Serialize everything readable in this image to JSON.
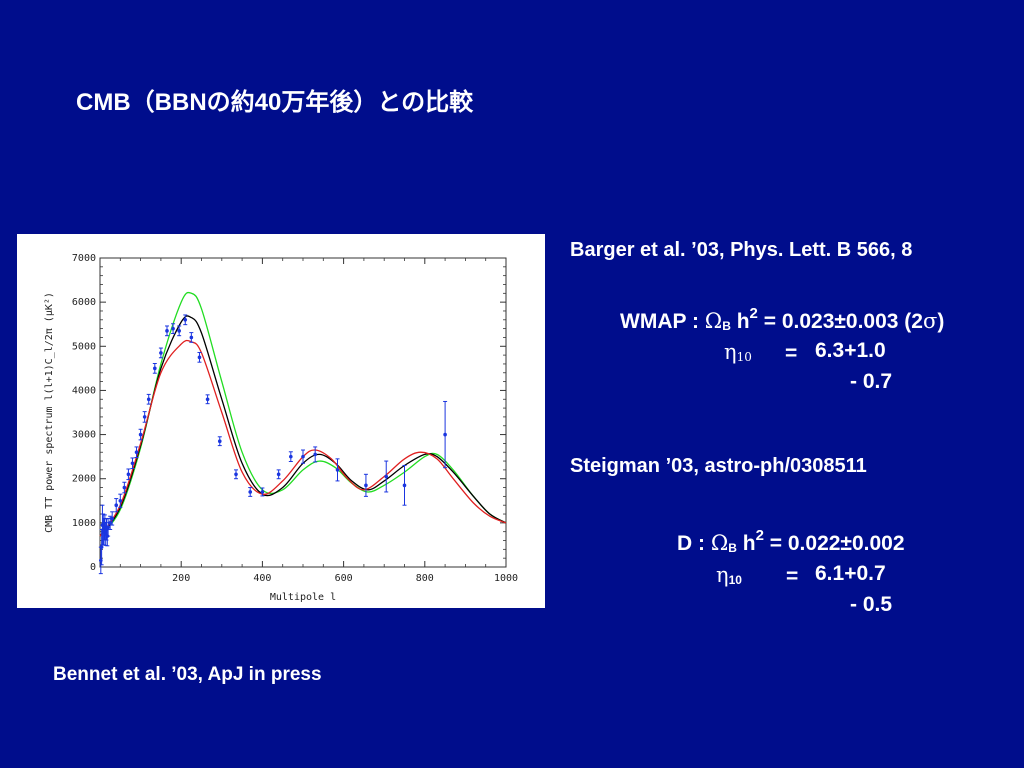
{
  "slide": {
    "title": "CMB（BBNの約40万年後）との比較",
    "ref_barger": "Barger et al. ’03, Phys. Lett. B 566, 8",
    "ref_steigman": "Steigman ’03, astro-ph/0308511",
    "ref_bennet": "Bennet et al. ’03, ApJ in press"
  },
  "wmap_eq": {
    "label": "WMAP : ",
    "omega": "Ω",
    "omega_sub": "B",
    "h": " h",
    "h_sup": "2",
    "value": " = 0.023±0.003 (2",
    "sigma": "σ",
    "close": ")",
    "eta": "η",
    "eta_sub": "10",
    "eq_sign": "=",
    "eta_val": "6.3+1.0",
    "eta_minus": "- 0.7"
  },
  "d_eq": {
    "label": "D : ",
    "omega": "Ω",
    "omega_sub": "B",
    "h": " h",
    "h_sup": "2",
    "value": " = 0.022±0.002",
    "eta": "η",
    "eta_sub": "10",
    "eq_sign": "=",
    "eta_val": "6.1+0.7",
    "eta_minus": "- 0.5"
  },
  "colors": {
    "background": "#000d8c",
    "text": "#ffffff",
    "best_fit": "#000000",
    "curve_high": "#22dd22",
    "curve_low": "#e02020",
    "data_points": "#1a35e0"
  },
  "chart_data": {
    "type": "line",
    "title": "",
    "xlabel": "Multipole  l",
    "ylabel": "CMB TT power spectrum  l(l+1)C_l/2π  (μK²)",
    "xlim": [
      0,
      1000
    ],
    "ylim": [
      0,
      7000
    ],
    "x_ticks": [
      "200",
      "400",
      "600",
      "800",
      "1000"
    ],
    "y_ticks": [
      "0",
      "1000",
      "2000",
      "3000",
      "4000",
      "5000",
      "6000",
      "7000"
    ],
    "series": [
      {
        "color_key": "curve_high",
        "x": [
          0,
          50,
          100,
          150,
          200,
          225,
          250,
          300,
          350,
          400,
          450,
          500,
          540,
          580,
          620,
          660,
          700,
          750,
          800,
          830,
          870,
          920,
          960,
          1000
        ],
        "y": [
          700,
          1300,
          2700,
          4600,
          6000,
          6200,
          5850,
          4200,
          2600,
          1750,
          1750,
          2200,
          2400,
          2250,
          1900,
          1700,
          1850,
          2150,
          2500,
          2550,
          2200,
          1600,
          1200,
          1000
        ]
      },
      {
        "color_key": "best_fit",
        "x": [
          0,
          50,
          100,
          150,
          200,
          225,
          250,
          300,
          350,
          400,
          450,
          500,
          540,
          580,
          620,
          660,
          700,
          750,
          800,
          830,
          870,
          920,
          960,
          1000
        ],
        "y": [
          700,
          1350,
          2750,
          4500,
          5550,
          5650,
          5300,
          3800,
          2350,
          1650,
          1800,
          2350,
          2550,
          2350,
          1950,
          1750,
          1950,
          2300,
          2550,
          2500,
          2150,
          1600,
          1200,
          1000
        ]
      },
      {
        "color_key": "curve_low",
        "x": [
          0,
          50,
          100,
          150,
          200,
          225,
          250,
          300,
          350,
          400,
          450,
          500,
          530,
          570,
          610,
          650,
          700,
          750,
          790,
          830,
          870,
          920,
          960,
          1000
        ],
        "y": [
          700,
          1400,
          2800,
          4400,
          5050,
          5100,
          4850,
          3500,
          2150,
          1650,
          1950,
          2500,
          2650,
          2450,
          2000,
          1750,
          2050,
          2450,
          2600,
          2450,
          2000,
          1450,
          1150,
          1000
        ]
      }
    ],
    "data_points": {
      "x": [
        2,
        4,
        6,
        8,
        10,
        12,
        14,
        16,
        18,
        20,
        25,
        30,
        40,
        50,
        60,
        70,
        80,
        90,
        100,
        110,
        120,
        135,
        150,
        165,
        180,
        195,
        210,
        225,
        245,
        265,
        295,
        335,
        370,
        400,
        440,
        470,
        500,
        530,
        585,
        655,
        705,
        750,
        850
      ],
      "y": [
        150,
        450,
        950,
        850,
        800,
        900,
        750,
        850,
        700,
        900,
        1000,
        1100,
        1400,
        1500,
        1800,
        2100,
        2350,
        2600,
        3000,
        3400,
        3800,
        4500,
        4850,
        5350,
        5400,
        5350,
        5600,
        5200,
        4750,
        3800,
        2850,
        2100,
        1700,
        1700,
        2100,
        2500,
        2500,
        2550,
        2200,
        1850,
        2050,
        1850,
        3000
      ],
      "err": [
        300,
        400,
        450,
        350,
        300,
        280,
        260,
        240,
        220,
        200,
        150,
        150,
        150,
        150,
        120,
        120,
        120,
        120,
        120,
        120,
        110,
        110,
        110,
        110,
        110,
        110,
        110,
        110,
        110,
        100,
        100,
        100,
        100,
        90,
        100,
        110,
        150,
        170,
        250,
        250,
        350,
        450,
        750
      ]
    },
    "grid": false,
    "legend": "none"
  }
}
